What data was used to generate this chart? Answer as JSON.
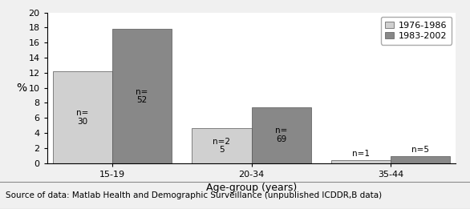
{
  "categories": [
    "15-19",
    "20-34",
    "35-44"
  ],
  "series": [
    {
      "label": "1976-1986",
      "values": [
        12.2,
        4.6,
        0.4
      ],
      "color": "#d0d0d0",
      "annotations": [
        {
          "text": "n=\n30",
          "inside": true
        },
        {
          "text": "n=2\n5",
          "inside": true
        },
        {
          "text": "n=1",
          "inside": false
        }
      ]
    },
    {
      "label": "1983-2002",
      "values": [
        17.8,
        7.4,
        0.9
      ],
      "color": "#888888",
      "annotations": [
        {
          "text": "n=\n52",
          "inside": true
        },
        {
          "text": "n=\n69",
          "inside": true
        },
        {
          "text": "n=5",
          "inside": false
        }
      ]
    }
  ],
  "ylabel": "%",
  "xlabel": "Age-group (years)",
  "ylim": [
    0,
    20
  ],
  "yticks": [
    0,
    2,
    4,
    6,
    8,
    10,
    12,
    14,
    16,
    18,
    20
  ],
  "bar_width": 0.32,
  "group_positions": [
    0.25,
    1.0,
    1.75
  ],
  "caption": "Source of data: Matlab Health and Demographic Surveillance (unpublished ICDDR,B data)",
  "figure_bg": "#f0f0f0",
  "plot_bg": "#ffffff",
  "caption_bg": "#e8e8e8"
}
